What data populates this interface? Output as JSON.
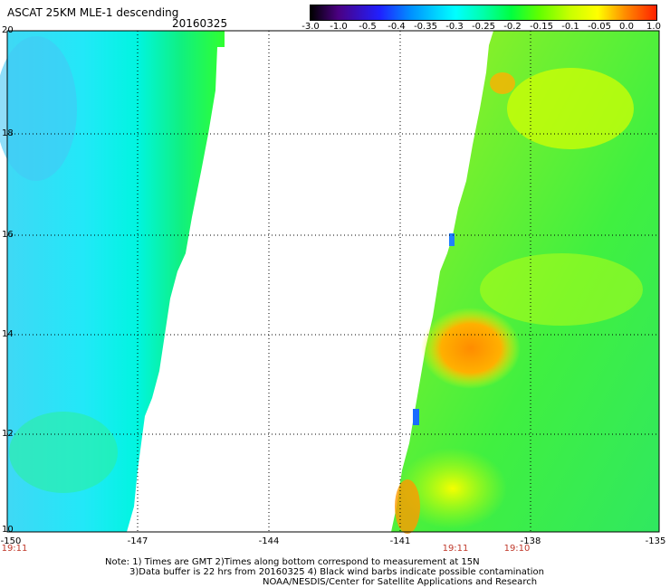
{
  "header": {
    "title": "ASCAT 25KM MLE-1 descending",
    "date": "20160325"
  },
  "colorbar": {
    "ticks": [
      "-3.0",
      "-1.0",
      "-0.5",
      "-0.4",
      "-0.35",
      "-0.3",
      "-0.25",
      "-0.2",
      "-0.15",
      "-0.1",
      "-0.05",
      "0.0",
      "1.0"
    ],
    "colors": [
      "#000000",
      "#4b0082",
      "#1a1aff",
      "#0090ff",
      "#00d8ff",
      "#00ffff",
      "#00ffaa",
      "#00ff40",
      "#60ff00",
      "#c8ff00",
      "#ffff00",
      "#ff8c00",
      "#ff2000"
    ]
  },
  "map": {
    "lat_labels": [
      "20",
      "18",
      "16",
      "14",
      "12",
      "10"
    ],
    "lon_labels": [
      "-150",
      "-147",
      "-144",
      "-141",
      "-138",
      "-135"
    ],
    "time_labels": [
      "19:11",
      "19:11",
      "19:10"
    ]
  },
  "notes": {
    "line1": "Note: 1) Times are GMT 2)Times along bottom correspond to measurement at 15N",
    "line2": "3)Data buffer is 22 hrs from 20160325 4) Black wind barbs indicate possible contamination",
    "line3": "NOAA/NESDIS/Center for Satellite Applications and Research"
  }
}
